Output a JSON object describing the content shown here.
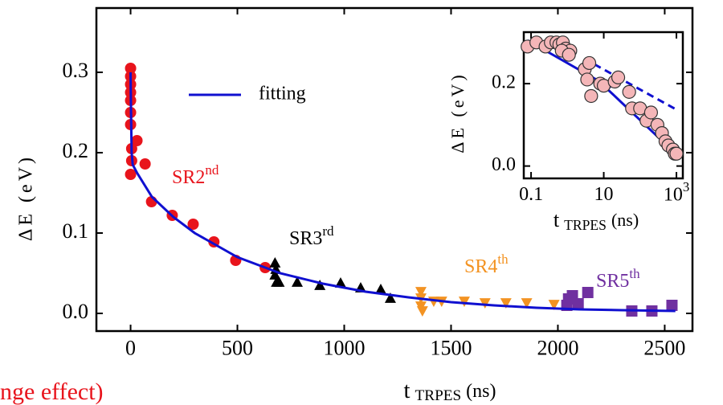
{
  "chart_data": [
    {
      "type": "scatter",
      "xlabel": {
        "main": "t",
        "sub": "TRPES",
        "unit": "(ns)"
      },
      "ylabel": "ΔE (eV)",
      "xlim": [
        -160,
        2630
      ],
      "ylim": [
        -0.022,
        0.38
      ],
      "xticks": [
        0,
        500,
        1000,
        1500,
        2000,
        2500
      ],
      "yticks": [
        {
          "value": 0,
          "label": "0.0"
        },
        0.1,
        0.2,
        0.3
      ],
      "series": [
        {
          "name": "fitting",
          "color": "#1010d0",
          "kind": "line",
          "x": [
            0,
            2,
            5,
            10,
            30,
            100,
            200,
            300,
            400,
            500,
            700,
            900,
            1100,
            1300,
            1500,
            1700,
            1900,
            2100,
            2300,
            2550
          ],
          "values": [
            0.3,
            0.25,
            0.2,
            0.185,
            0.175,
            0.145,
            0.12,
            0.1,
            0.085,
            0.07,
            0.05,
            0.037,
            0.027,
            0.02,
            0.014,
            0.01,
            0.007,
            0.005,
            0.004,
            0.003
          ]
        },
        {
          "name": "SR2nd",
          "color": "#e8141c",
          "kind": "circle",
          "x": [
            0,
            0,
            0,
            0,
            0,
            0,
            0,
            30,
            5,
            5,
            0,
            68,
            98,
            195,
            293,
            390,
            492,
            630
          ],
          "values": [
            0.305,
            0.295,
            0.285,
            0.275,
            0.265,
            0.25,
            0.235,
            0.215,
            0.205,
            0.19,
            0.173,
            0.186,
            0.139,
            0.122,
            0.111,
            0.089,
            0.066,
            0.057
          ]
        },
        {
          "name": "SR3rd",
          "color": "#000000",
          "kind": "triangle-up",
          "x": [
            676,
            680,
            676,
            683,
            695,
            780,
            886,
            983,
            1077,
            1171,
            1216
          ],
          "values": [
            0.062,
            0.054,
            0.047,
            0.038,
            0.038,
            0.038,
            0.034,
            0.037,
            0.031,
            0.029,
            0.018
          ]
        },
        {
          "name": "SR4th",
          "color": "#f39322",
          "kind": "triangle-down",
          "x": [
            1359,
            1359,
            1359,
            1366,
            1419,
            1456,
            1562,
            1659,
            1757,
            1854,
            1982
          ],
          "values": [
            0.028,
            0.02,
            0.01,
            0.004,
            0.016,
            0.016,
            0.016,
            0.014,
            0.014,
            0.014,
            0.012
          ]
        },
        {
          "name": "SR5th",
          "color": "#7030a0",
          "kind": "square",
          "x": [
            2042,
            2050,
            2068,
            2095,
            2140,
            2346,
            2440,
            2534
          ],
          "values": [
            0.01,
            0.018,
            0.022,
            0.012,
            0.026,
            0.003,
            0.003,
            0.01
          ]
        }
      ],
      "legend": "fitting",
      "annotations": [
        {
          "text": "SR2",
          "sup": "nd",
          "color": "#e8141c"
        },
        {
          "text": "SR3",
          "sup": "rd",
          "color": "#000000"
        },
        {
          "text": "SR4",
          "sup": "th",
          "color": "#f39322"
        },
        {
          "text": "SR5",
          "sup": "th",
          "color": "#7030a0"
        }
      ],
      "footnote": {
        "text": "nge effect)",
        "color": "#e8141c"
      }
    },
    {
      "type": "scatter",
      "xscale": "log",
      "xlabel": {
        "main": "t",
        "sub": "TRPES",
        "unit": "(ns)"
      },
      "ylabel": "ΔE (eV)",
      "xlim": [
        0.063,
        1500
      ],
      "ylim": [
        -0.03,
        0.325
      ],
      "xticks": [
        0.1,
        10,
        {
          "value": 1000,
          "label": "10",
          "sup": "3"
        }
      ],
      "yticks": [
        {
          "value": 0,
          "label": "0.0"
        },
        0.2
      ],
      "series": [
        {
          "name": "data",
          "color": "#f4b6b8",
          "edge": "#333333",
          "kind": "circle",
          "x": [
            0.08,
            0.14,
            0.25,
            0.35,
            0.5,
            0.6,
            0.75,
            0.9,
            1.2,
            0.7,
            1.1,
            3,
            4,
            3.5,
            4.5,
            8,
            10,
            20,
            25,
            50,
            60,
            100,
            150,
            200,
            300,
            400,
            500,
            600,
            800,
            900,
            1000
          ],
          "values": [
            0.29,
            0.3,
            0.29,
            0.3,
            0.3,
            0.295,
            0.3,
            0.285,
            0.28,
            0.28,
            0.27,
            0.235,
            0.25,
            0.21,
            0.17,
            0.2,
            0.195,
            0.205,
            0.215,
            0.18,
            0.14,
            0.14,
            0.11,
            0.13,
            0.1,
            0.08,
            0.06,
            0.05,
            0.04,
            0.03,
            0.03
          ]
        },
        {
          "name": "fit-1",
          "color": "#1010d0",
          "kind": "line",
          "x": [
            0.08,
            15.5
          ],
          "values": [
            0.305,
            0.19
          ]
        },
        {
          "name": "fit-2",
          "color": "#1010d0",
          "kind": "line",
          "x": [
            7,
            1150
          ],
          "values": [
            0.208,
            0.023
          ]
        },
        {
          "name": "fit-3",
          "color": "#1010d0",
          "kind": "dashed",
          "x": [
            5.5,
            1150
          ],
          "values": [
            0.247,
            0.134
          ]
        }
      ]
    }
  ]
}
